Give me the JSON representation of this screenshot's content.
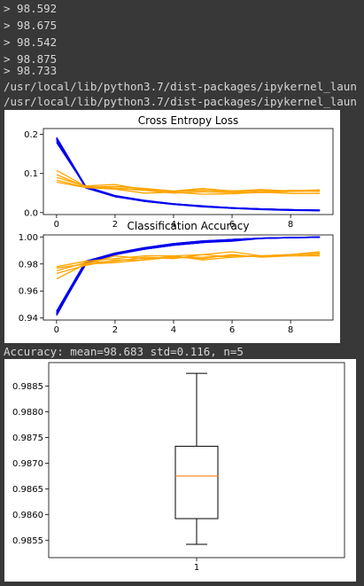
{
  "console": {
    "lines": [
      "> 98.592",
      "> 98.675",
      "> 98.542",
      "> 98.875",
      "> 98.733"
    ],
    "warnings": [
      "/usr/local/lib/python3.7/dist-packages/ipykernel_laun",
      "/usr/local/lib/python3.7/dist-packages/ipykernel_laun"
    ],
    "summary": "Accuracy: mean=98.683 std=0.116, n=5"
  },
  "colors": {
    "train": "#0000ee",
    "test": "#ffa500",
    "median": "#ff7f0e",
    "axis": "#000000"
  },
  "chart_data": [
    {
      "type": "line",
      "title": "Cross Entropy Loss",
      "x": [
        0,
        1,
        2,
        3,
        4,
        5,
        6,
        7,
        8,
        9
      ],
      "xticks": [
        0,
        2,
        4,
        6,
        8
      ],
      "yticks": [
        0.0,
        0.1,
        0.2
      ],
      "ytick_labels": [
        "0.0",
        "0.1",
        "0.2"
      ],
      "ylim": [
        -0.005,
        0.215
      ],
      "xlim": [
        -0.45,
        9.45
      ],
      "series": [
        {
          "group": "train",
          "values": [
            0.192,
            0.066,
            0.043,
            0.03,
            0.022,
            0.016,
            0.012,
            0.009,
            0.007,
            0.006
          ]
        },
        {
          "group": "train",
          "values": [
            0.188,
            0.064,
            0.042,
            0.029,
            0.021,
            0.016,
            0.012,
            0.009,
            0.007,
            0.005
          ]
        },
        {
          "group": "train",
          "values": [
            0.185,
            0.065,
            0.041,
            0.029,
            0.021,
            0.015,
            0.011,
            0.008,
            0.006,
            0.005
          ]
        },
        {
          "group": "train",
          "values": [
            0.19,
            0.063,
            0.041,
            0.03,
            0.022,
            0.016,
            0.012,
            0.009,
            0.007,
            0.006
          ]
        },
        {
          "group": "train",
          "values": [
            0.18,
            0.066,
            0.043,
            0.031,
            0.022,
            0.017,
            0.012,
            0.009,
            0.007,
            0.006
          ]
        },
        {
          "group": "test",
          "values": [
            0.108,
            0.067,
            0.063,
            0.058,
            0.055,
            0.058,
            0.052,
            0.057,
            0.056,
            0.058
          ]
        },
        {
          "group": "test",
          "values": [
            0.097,
            0.066,
            0.062,
            0.057,
            0.05,
            0.053,
            0.051,
            0.051,
            0.054,
            0.055
          ]
        },
        {
          "group": "test",
          "values": [
            0.09,
            0.068,
            0.072,
            0.059,
            0.053,
            0.057,
            0.056,
            0.053,
            0.057,
            0.054
          ]
        },
        {
          "group": "test",
          "values": [
            0.083,
            0.065,
            0.067,
            0.062,
            0.055,
            0.062,
            0.055,
            0.059,
            0.055,
            0.057
          ]
        },
        {
          "group": "test",
          "values": [
            0.078,
            0.064,
            0.06,
            0.05,
            0.052,
            0.047,
            0.048,
            0.052,
            0.049,
            0.049
          ]
        }
      ]
    },
    {
      "type": "line",
      "title": "Classification Accuracy",
      "x": [
        0,
        1,
        2,
        3,
        4,
        5,
        6,
        7,
        8,
        9
      ],
      "xticks": [
        0,
        2,
        4,
        6,
        8
      ],
      "yticks": [
        0.94,
        0.96,
        0.98,
        1.0
      ],
      "ytick_labels": [
        "0.94",
        "0.96",
        "0.98",
        "1.00"
      ],
      "ylim": [
        0.9385,
        1.0015
      ],
      "xlim": [
        -0.45,
        9.45
      ],
      "series": [
        {
          "group": "train",
          "values": [
            0.942,
            0.981,
            0.988,
            0.992,
            0.995,
            0.997,
            0.998,
            0.999,
            0.9995,
            0.9998
          ]
        },
        {
          "group": "train",
          "values": [
            0.943,
            0.98,
            0.987,
            0.991,
            0.994,
            0.996,
            0.998,
            0.999,
            0.9995,
            0.9998
          ]
        },
        {
          "group": "train",
          "values": [
            0.944,
            0.981,
            0.988,
            0.992,
            0.995,
            0.997,
            0.998,
            0.999,
            0.9995,
            0.9998
          ]
        },
        {
          "group": "train",
          "values": [
            0.945,
            0.982,
            0.988,
            0.991,
            0.994,
            0.996,
            0.997,
            0.999,
            0.9995,
            0.9998
          ]
        },
        {
          "group": "train",
          "values": [
            0.943,
            0.98,
            0.987,
            0.991,
            0.994,
            0.996,
            0.998,
            0.999,
            0.9995,
            0.9998
          ]
        },
        {
          "group": "test",
          "values": [
            0.969,
            0.98,
            0.981,
            0.983,
            0.985,
            0.984,
            0.987,
            0.985,
            0.986,
            0.986
          ]
        },
        {
          "group": "test",
          "values": [
            0.973,
            0.979,
            0.983,
            0.983,
            0.986,
            0.983,
            0.985,
            0.986,
            0.987,
            0.988
          ]
        },
        {
          "group": "test",
          "values": [
            0.975,
            0.981,
            0.982,
            0.985,
            0.984,
            0.987,
            0.985,
            0.986,
            0.986,
            0.987
          ]
        },
        {
          "group": "test",
          "values": [
            0.977,
            0.98,
            0.986,
            0.984,
            0.985,
            0.985,
            0.986,
            0.986,
            0.987,
            0.989
          ]
        },
        {
          "group": "test",
          "values": [
            0.978,
            0.982,
            0.984,
            0.986,
            0.986,
            0.987,
            0.989,
            0.986,
            0.987,
            0.988
          ]
        }
      ]
    },
    {
      "type": "box",
      "categories": [
        "1"
      ],
      "yticks": [
        0.9855,
        0.986,
        0.9865,
        0.987,
        0.9875,
        0.988,
        0.9885
      ],
      "ytick_labels": [
        "0.9855",
        "0.9860",
        "0.9865",
        "0.9870",
        "0.9875",
        "0.9880",
        "0.9885"
      ],
      "ylim": [
        0.98516,
        0.98896
      ],
      "box": {
        "whisker_low": 0.98542,
        "q1": 0.98592,
        "median": 0.98675,
        "q3": 0.98733,
        "whisker_high": 0.98875
      }
    }
  ]
}
